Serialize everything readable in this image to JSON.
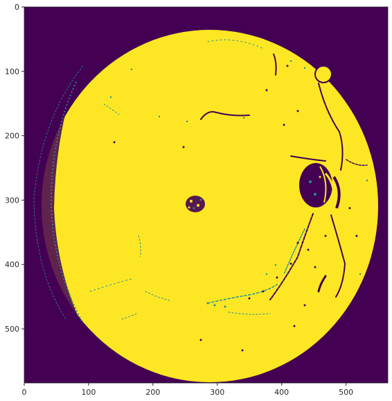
{
  "colors": {
    "background_class": "#440154",
    "foreground_class": "#fde725",
    "edge_class": "#21918c",
    "axis": "#262626",
    "page": "#ffffff"
  },
  "axes": {
    "x": {
      "range": [
        0,
        565
      ],
      "ticks": [
        0,
        100,
        200,
        300,
        400,
        500
      ],
      "tick_labels": [
        "0",
        "100",
        "200",
        "300",
        "400",
        "500"
      ]
    },
    "y": {
      "range": [
        0,
        584
      ],
      "inverted": true,
      "ticks": [
        0,
        100,
        200,
        300,
        400,
        500
      ],
      "tick_labels": [
        "0",
        "100",
        "200",
        "300",
        "400",
        "500"
      ]
    }
  }
}
